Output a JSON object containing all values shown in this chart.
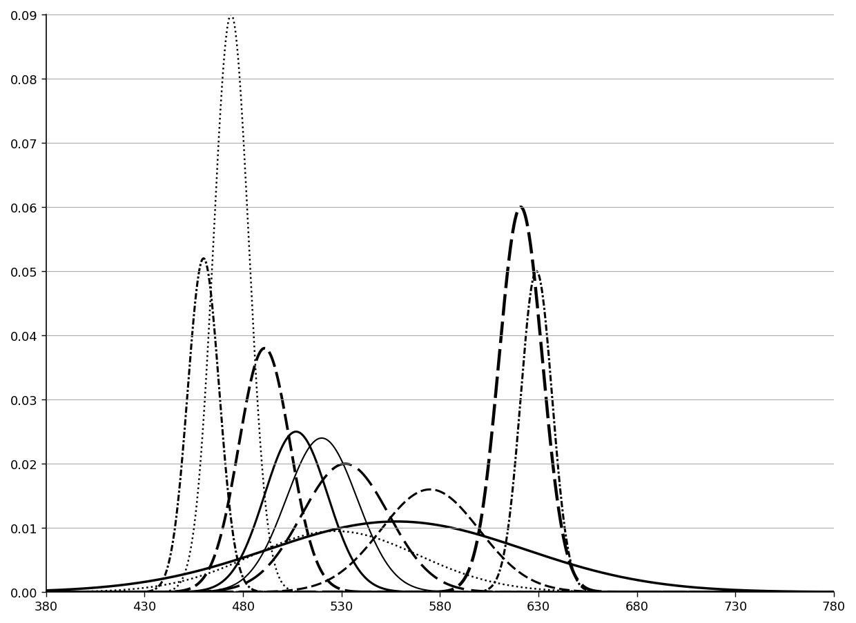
{
  "title": "",
  "xlabel": "",
  "ylabel": "",
  "xlim": [
    380,
    780
  ],
  "ylim": [
    0,
    0.09
  ],
  "xticks": [
    380,
    430,
    480,
    530,
    580,
    630,
    680,
    730,
    780
  ],
  "yticks": [
    0,
    0.01,
    0.02,
    0.03,
    0.04,
    0.05,
    0.06,
    0.07,
    0.08,
    0.09
  ],
  "background_color": "#ffffff",
  "curves": [
    {
      "peak": 474,
      "sigma": 9,
      "amplitude": 0.09,
      "ls": "dotted",
      "lw": 1.8
    },
    {
      "peak": 460,
      "sigma": 8,
      "amplitude": 0.052,
      "ls": "dashdot",
      "lw": 2.2
    },
    {
      "peak": 491,
      "sigma": 13,
      "amplitude": 0.038,
      "ls": "dashed_med",
      "lw": 2.8
    },
    {
      "peak": 507,
      "sigma": 16,
      "amplitude": 0.025,
      "ls": "solid_thick",
      "lw": 2.2
    },
    {
      "peak": 520,
      "sigma": 18,
      "amplitude": 0.024,
      "ls": "solid_thin",
      "lw": 1.5
    },
    {
      "peak": 532,
      "sigma": 22,
      "amplitude": 0.02,
      "ls": "dashed_long",
      "lw": 2.5
    },
    {
      "peak": 527,
      "sigma": 42,
      "amplitude": 0.0095,
      "ls": "dotted2",
      "lw": 1.8
    },
    {
      "peak": 558,
      "sigma": 65,
      "amplitude": 0.011,
      "ls": "solid_broad",
      "lw": 2.5
    },
    {
      "peak": 575,
      "sigma": 25,
      "amplitude": 0.016,
      "ls": "dashed_med2",
      "lw": 2.2
    },
    {
      "peak": 621,
      "sigma": 11,
      "amplitude": 0.06,
      "ls": "dashed_heavy",
      "lw": 3.2
    },
    {
      "peak": 629,
      "sigma": 8,
      "amplitude": 0.05,
      "ls": "dashdot2",
      "lw": 2.2
    }
  ]
}
